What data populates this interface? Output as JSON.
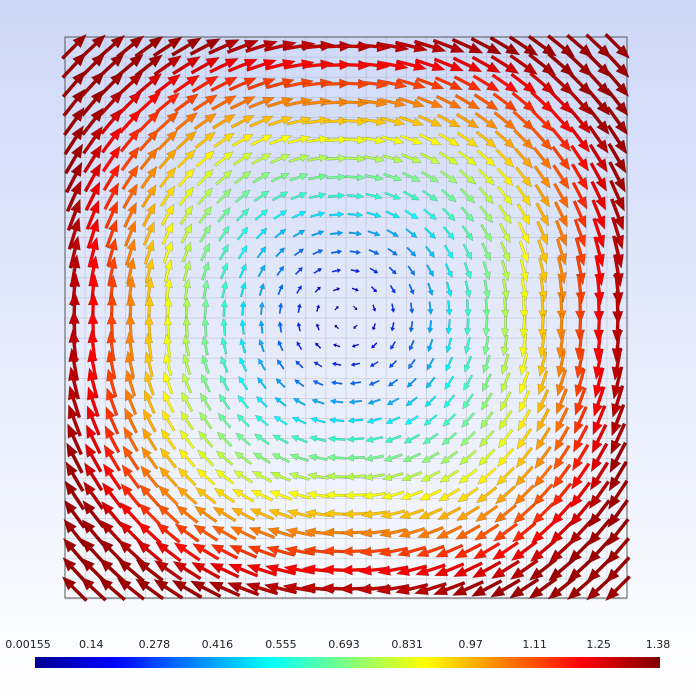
{
  "colorbar": {
    "range": [
      0.00155,
      1.38
    ],
    "ticks": [
      0.00155,
      0.14,
      0.278,
      0.416,
      0.555,
      0.693,
      0.831,
      0.97,
      1.11,
      1.25,
      1.38
    ]
  }
}
